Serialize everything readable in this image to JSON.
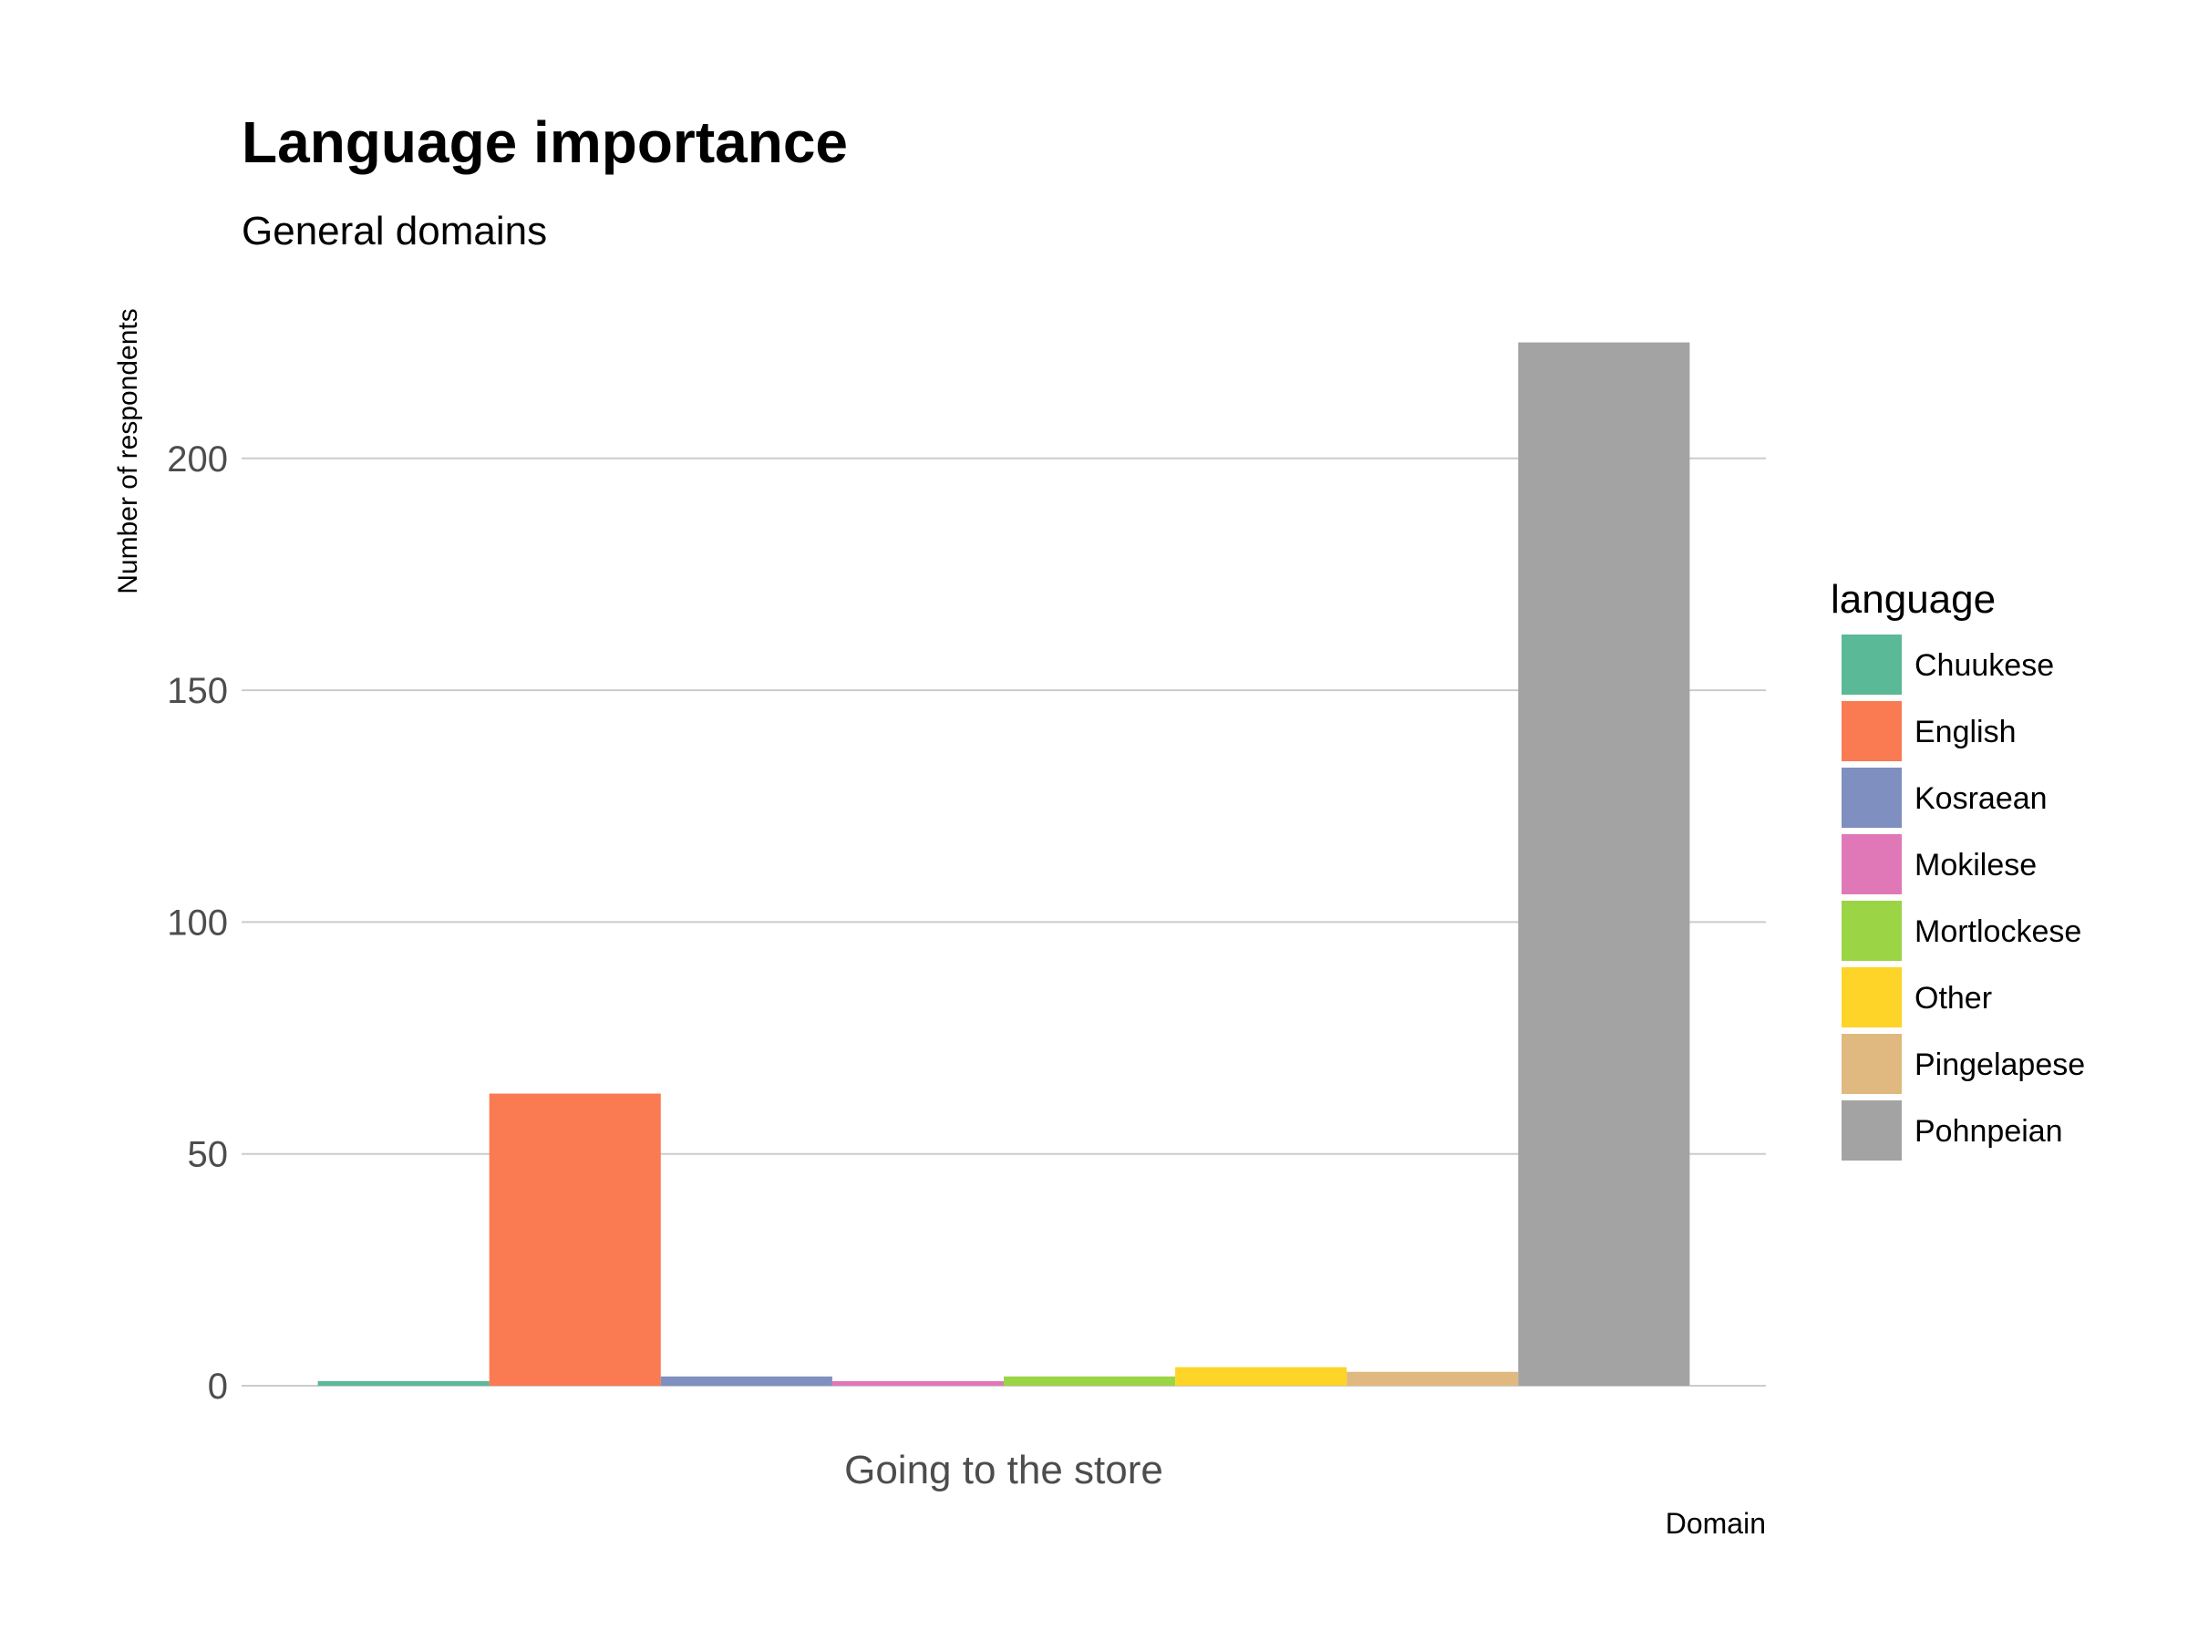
{
  "chart_data": {
    "type": "bar",
    "title": "Language importance",
    "subtitle": "General domains",
    "xlabel": "Domain",
    "ylabel": "Number of respondents",
    "categories": [
      "Going to the store"
    ],
    "ylim": [
      0,
      232
    ],
    "yticks": [
      0,
      50,
      100,
      150,
      200
    ],
    "grid": true,
    "legend_position": "right",
    "legend_title": "language",
    "series": [
      {
        "name": "Chuukese",
        "color": "#5ab996",
        "values": [
          1
        ]
      },
      {
        "name": "English",
        "color": "#fa7a52",
        "values": [
          63
        ]
      },
      {
        "name": "Kosraean",
        "color": "#7f8fbf",
        "values": [
          2
        ]
      },
      {
        "name": "Mokilese",
        "color": "#e078b8",
        "values": [
          1
        ]
      },
      {
        "name": "Mortlockese",
        "color": "#9bd444",
        "values": [
          2
        ]
      },
      {
        "name": "Other",
        "color": "#fdd427",
        "values": [
          4
        ]
      },
      {
        "name": "Pingelapese",
        "color": "#dfb97f",
        "values": [
          3
        ]
      },
      {
        "name": "Pohnpeian",
        "color": "#a3a3a3",
        "values": [
          225
        ]
      }
    ]
  }
}
